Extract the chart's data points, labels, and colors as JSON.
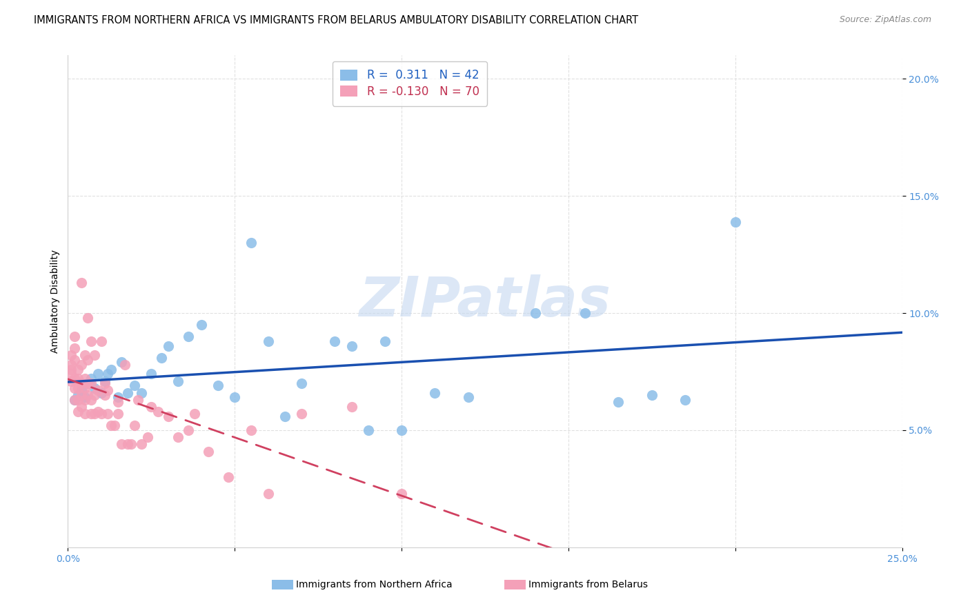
{
  "title": "IMMIGRANTS FROM NORTHERN AFRICA VS IMMIGRANTS FROM BELARUS AMBULATORY DISABILITY CORRELATION CHART",
  "source": "Source: ZipAtlas.com",
  "ylabel": "Ambulatory Disability",
  "xlim": [
    0.0,
    0.25
  ],
  "ylim": [
    0.0,
    0.21
  ],
  "legend_labels": [
    "Immigrants from Northern Africa",
    "Immigrants from Belarus"
  ],
  "R_northern_africa": 0.311,
  "N_northern_africa": 42,
  "R_belarus": -0.13,
  "N_belarus": 70,
  "color_northern_africa": "#8bbde8",
  "color_belarus": "#f4a0b8",
  "color_trend_northern_africa": "#1a50b0",
  "color_trend_belarus": "#d04060",
  "watermark_color": "#c5d8f0",
  "northern_africa_x": [
    0.002,
    0.003,
    0.004,
    0.005,
    0.006,
    0.007,
    0.008,
    0.009,
    0.01,
    0.011,
    0.012,
    0.013,
    0.015,
    0.016,
    0.018,
    0.02,
    0.022,
    0.025,
    0.028,
    0.03,
    0.033,
    0.036,
    0.04,
    0.045,
    0.05,
    0.055,
    0.06,
    0.065,
    0.07,
    0.08,
    0.085,
    0.09,
    0.095,
    0.1,
    0.11,
    0.12,
    0.14,
    0.155,
    0.165,
    0.175,
    0.185,
    0.2
  ],
  "northern_africa_y": [
    0.063,
    0.065,
    0.067,
    0.064,
    0.07,
    0.072,
    0.068,
    0.074,
    0.066,
    0.071,
    0.074,
    0.076,
    0.064,
    0.079,
    0.066,
    0.069,
    0.066,
    0.074,
    0.081,
    0.086,
    0.071,
    0.09,
    0.095,
    0.069,
    0.064,
    0.13,
    0.088,
    0.056,
    0.07,
    0.088,
    0.086,
    0.05,
    0.088,
    0.05,
    0.066,
    0.064,
    0.1,
    0.1,
    0.062,
    0.065,
    0.063,
    0.139
  ],
  "belarus_x": [
    0.001,
    0.001,
    0.001,
    0.001,
    0.001,
    0.002,
    0.002,
    0.002,
    0.002,
    0.002,
    0.002,
    0.003,
    0.003,
    0.003,
    0.003,
    0.003,
    0.004,
    0.004,
    0.004,
    0.004,
    0.004,
    0.005,
    0.005,
    0.005,
    0.005,
    0.005,
    0.006,
    0.006,
    0.006,
    0.006,
    0.007,
    0.007,
    0.007,
    0.007,
    0.008,
    0.008,
    0.008,
    0.009,
    0.009,
    0.01,
    0.01,
    0.011,
    0.011,
    0.012,
    0.012,
    0.013,
    0.014,
    0.015,
    0.015,
    0.016,
    0.017,
    0.018,
    0.019,
    0.02,
    0.021,
    0.022,
    0.024,
    0.025,
    0.027,
    0.03,
    0.033,
    0.036,
    0.038,
    0.042,
    0.048,
    0.055,
    0.06,
    0.07,
    0.085,
    0.1
  ],
  "belarus_y": [
    0.078,
    0.071,
    0.074,
    0.082,
    0.076,
    0.063,
    0.068,
    0.072,
    0.08,
    0.085,
    0.09,
    0.058,
    0.063,
    0.068,
    0.072,
    0.076,
    0.06,
    0.065,
    0.07,
    0.078,
    0.113,
    0.057,
    0.063,
    0.068,
    0.072,
    0.082,
    0.065,
    0.07,
    0.08,
    0.098,
    0.057,
    0.063,
    0.07,
    0.088,
    0.057,
    0.065,
    0.082,
    0.058,
    0.067,
    0.057,
    0.088,
    0.065,
    0.07,
    0.057,
    0.067,
    0.052,
    0.052,
    0.057,
    0.062,
    0.044,
    0.078,
    0.044,
    0.044,
    0.052,
    0.063,
    0.044,
    0.047,
    0.06,
    0.058,
    0.056,
    0.047,
    0.05,
    0.057,
    0.041,
    0.03,
    0.05,
    0.023,
    0.057,
    0.06,
    0.023
  ],
  "title_fontsize": 10.5,
  "axis_label_fontsize": 10,
  "tick_fontsize": 10,
  "legend_fontsize": 12
}
